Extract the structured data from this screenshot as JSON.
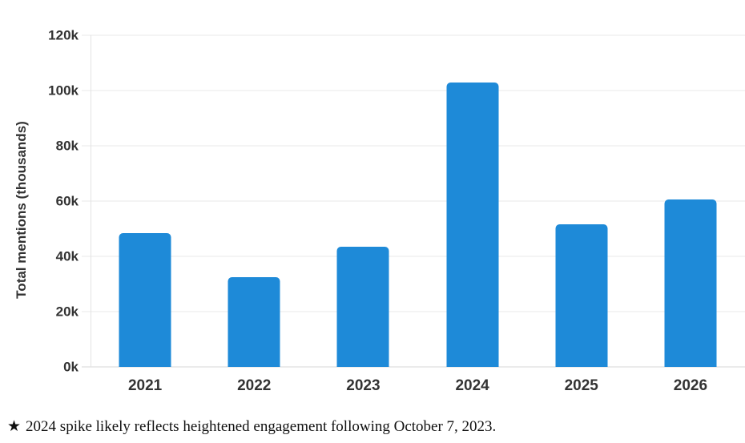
{
  "chart_data": {
    "type": "bar",
    "title": "",
    "xlabel": "",
    "ylabel": "Total mentions (thousands)",
    "categories": [
      "2021",
      "2022",
      "2023",
      "2024",
      "2025",
      "2026"
    ],
    "values": [
      48.5,
      32.5,
      43.5,
      103,
      51.5,
      60.5
    ],
    "ylim": [
      0,
      120
    ],
    "yticks": [
      {
        "value": 0,
        "label": "0k"
      },
      {
        "value": 20,
        "label": "20k"
      },
      {
        "value": 40,
        "label": "40k"
      },
      {
        "value": 60,
        "label": "60k"
      },
      {
        "value": 80,
        "label": "80k"
      },
      {
        "value": 100,
        "label": "100k"
      },
      {
        "value": 120,
        "label": "120k"
      }
    ],
    "grid": true,
    "legend": "none",
    "bar_color": "#1e8ad8",
    "grid_color": "#e8e8e8",
    "axis_text_color": "#333333"
  },
  "footnote": {
    "star": "★",
    "text": "2024 spike likely reflects heightened engagement following October 7, 2023."
  }
}
